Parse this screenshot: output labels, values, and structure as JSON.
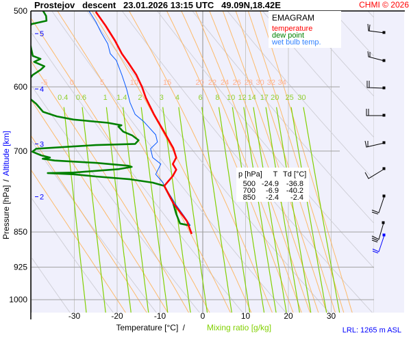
{
  "header": {
    "title": "Prostejov   descent   23.01.2026 13:15 UTC   49.09N,18.42E",
    "copyright": "CHMI © 2026"
  },
  "legend": {
    "title": "EMAGRAM",
    "temperature": "temperature",
    "dew_point": "dew point",
    "wet_bulb": "wet bulb temp."
  },
  "table": {
    "headers": [
      "p [hPa]",
      "T",
      "Td [°C]"
    ],
    "rows": [
      [
        "500",
        "-24.9",
        "-36.8"
      ],
      [
        "700",
        "-6.9",
        "-40.2"
      ],
      [
        "850",
        "-2.4",
        "-2.4"
      ]
    ]
  },
  "axes": {
    "x_label_temp": "Temperature [°C]",
    "x_sep": "/",
    "x_label_mix": "Mixing ratio [g/kg]",
    "y_label_pressure": "Pressure [hPa]",
    "y_sep": "/",
    "y_label_alt": "Altitude [km]"
  },
  "lrl": "LRL: 1265 m ASL",
  "colors": {
    "temperature": "#ff0000",
    "dew_point": "#008000",
    "wet_bulb": "#0055ff",
    "moist_adiabat": "#ffb050",
    "mixing_ratio": "#80d000",
    "dry_adiabat": "#cccccc",
    "background": "#f0f0fc"
  },
  "chart_data": {
    "type": "line",
    "title": "EMAGRAM",
    "xlabel": "Temperature [°C] / Mixing ratio [g/kg]",
    "ylabel": "Pressure [hPa] / Altitude [km]",
    "ylim": [
      500,
      1030
    ],
    "xlim": [
      -40,
      47
    ],
    "pressure_ticks": [
      "500",
      "600",
      "700",
      "850",
      "925",
      "1000"
    ],
    "temp_ticks": [
      "-30",
      "-20",
      "-10",
      "0",
      "10",
      "20",
      "30"
    ],
    "altitude_ticks": [
      {
        "km": "5",
        "p": 528
      },
      {
        "km": "4",
        "p": 603
      },
      {
        "km": "3",
        "p": 688
      },
      {
        "km": "2",
        "p": 781
      }
    ],
    "moist_adiabat_labels": [
      "-5",
      "0",
      "5",
      "10",
      "15",
      "20",
      "22",
      "24",
      "26",
      "28",
      "30",
      "32",
      "34"
    ],
    "mixing_ratio_labels": [
      "0.4",
      "0.6",
      "1",
      "1.4",
      "2",
      "3",
      "4",
      "6",
      "8",
      "10",
      "12",
      "14",
      "17",
      "20",
      "25",
      "30"
    ],
    "series": [
      {
        "name": "temperature",
        "p": [
          501,
          518,
          537,
          554,
          567,
          583,
          600,
          616,
          641,
          669,
          695,
          711,
          722,
          732,
          743,
          761,
          793,
          828,
          854
        ],
        "t": [
          -25.0,
          -22.7,
          -20.5,
          -18.9,
          -17.3,
          -15.5,
          -14.2,
          -13.3,
          -11.4,
          -9.0,
          -6.9,
          -6.2,
          -7.0,
          -6.2,
          -7.0,
          -9.0,
          -6.9,
          -3.7,
          -2.6
        ]
      },
      {
        "name": "dew point",
        "p": [
          500,
          506,
          512,
          516,
          530,
          544,
          557,
          561,
          565,
          571,
          576,
          583,
          600,
          618,
          625,
          637,
          644,
          649,
          654,
          658,
          660,
          668,
          674,
          682,
          688,
          690,
          696,
          701,
          707,
          711,
          713,
          716,
          720,
          725,
          727,
          731,
          737,
          738,
          740,
          744,
          749,
          755,
          761,
          791,
          814,
          833,
          837
        ],
        "t": [
          -37.3,
          -36.6,
          -36.5,
          -40.0,
          -42,
          -40.2,
          -39.7,
          -37.9,
          -39.4,
          -37.0,
          -37.9,
          -39.7,
          -42,
          -40.2,
          -38.9,
          -37.3,
          -34.1,
          -30.2,
          -22.2,
          -19.0,
          -19.7,
          -18.6,
          -16.5,
          -15.0,
          -15.8,
          -25.0,
          -38.9,
          -39.8,
          -37.8,
          -35.7,
          -37.4,
          -34.6,
          -25.0,
          -17.4,
          -16.6,
          -19.7,
          -30.2,
          -36.2,
          -30.2,
          -25.0,
          -17.0,
          -11.7,
          -9.0,
          -7.0,
          -6.2,
          -5.3,
          -3.0
        ]
      },
      {
        "name": "wet bulb temp.",
        "p": [
          500,
          513,
          526,
          541,
          554,
          563,
          583,
          603,
          623,
          641,
          652,
          673,
          685,
          696,
          711,
          722,
          740,
          755,
          761,
          797,
          820,
          837
        ],
        "t": [
          -26.6,
          -25.0,
          -23.8,
          -22.2,
          -21.6,
          -20.2,
          -18.9,
          -17.8,
          -17.0,
          -15.8,
          -13.8,
          -11.0,
          -10.6,
          -12.2,
          -11.7,
          -9.8,
          -11.0,
          -9.3,
          -9.0,
          -6.2,
          -4.2,
          -2.9
        ]
      }
    ]
  }
}
